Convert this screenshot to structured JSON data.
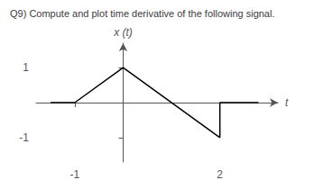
{
  "chart_data": {
    "type": "line",
    "title": "Q9) Compute and plot time derivative of the following signal.",
    "xlabel": "t",
    "ylabel": "x (t)",
    "x": [
      -1.5,
      -1,
      0,
      2,
      2,
      2.8
    ],
    "values": [
      0,
      0,
      1,
      -1,
      0,
      0
    ],
    "color": "#000000",
    "xlim": [
      -1.8,
      3.2
    ],
    "xticks": [
      -1,
      2
    ],
    "ylim": [
      -1.7,
      1.7
    ],
    "yticks": [
      1,
      -1
    ],
    "grid": false
  }
}
